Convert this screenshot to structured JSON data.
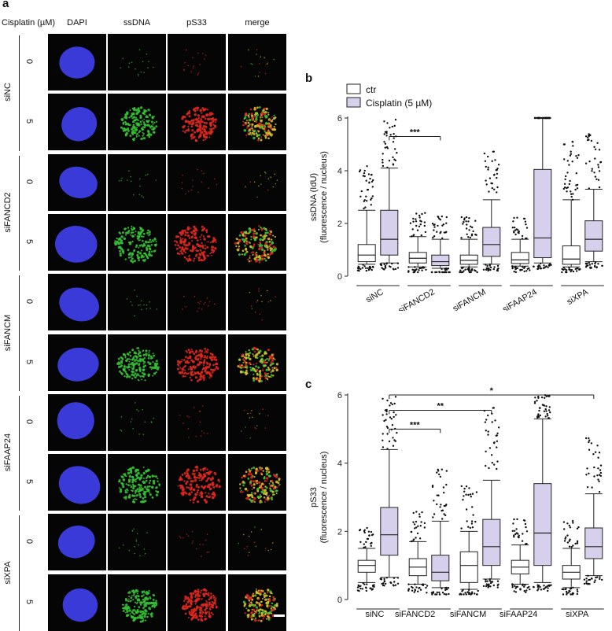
{
  "panel_labels": {
    "a": "a",
    "b": "b",
    "c": "c"
  },
  "treatment_header": "Cisplatin (µM)",
  "channels": [
    "DAPI",
    "ssDNA",
    "pS33",
    "merge"
  ],
  "channel_colors": {
    "DAPI": "#3a3ad8",
    "ssDNA": "#35c235",
    "pS33": "#e02820",
    "merge": "#d8c030"
  },
  "row_groups": [
    "siNC",
    "siFANCD2",
    "siFANCM",
    "siFAAP24",
    "siXPA"
  ],
  "concentrations": [
    "0",
    "5"
  ],
  "chart_data": [
    {
      "type": "box",
      "panel": "b",
      "ylabel": "ssDNA (IdU)",
      "ylabel2": "(fluorescence / nucleus)",
      "ylim": [
        0,
        6
      ],
      "yticks": [
        0,
        2,
        4,
        6
      ],
      "categories": [
        "siNC",
        "siFANCD2",
        "siFANCM",
        "siFAAP24",
        "siXPA"
      ],
      "legend": [
        {
          "name": "ctr",
          "color": "#ffffff"
        },
        {
          "name": "Cisplatin (5 µM)",
          "color": "#d6d0ec"
        }
      ],
      "series": [
        {
          "name": "ctr",
          "boxes": [
            {
              "min": 0.45,
              "q1": 0.55,
              "median": 0.8,
              "q3": 1.2,
              "max": 2.5
            },
            {
              "min": 0.35,
              "q1": 0.5,
              "median": 0.68,
              "q3": 0.9,
              "max": 1.5
            },
            {
              "min": 0.35,
              "q1": 0.45,
              "median": 0.6,
              "q3": 0.8,
              "max": 1.4
            },
            {
              "min": 0.38,
              "q1": 0.48,
              "median": 0.62,
              "q3": 0.9,
              "max": 1.4
            },
            {
              "min": 0.35,
              "q1": 0.45,
              "median": 0.65,
              "q3": 1.15,
              "max": 2.9
            }
          ]
        },
        {
          "name": "Cisplatin (5 µM)",
          "boxes": [
            {
              "min": 0.5,
              "q1": 0.8,
              "median": 1.4,
              "q3": 2.5,
              "max": 4.1
            },
            {
              "min": 0.3,
              "q1": 0.4,
              "median": 0.55,
              "q3": 0.8,
              "max": 1.4
            },
            {
              "min": 0.45,
              "q1": 0.75,
              "median": 1.2,
              "q3": 1.85,
              "max": 2.9
            },
            {
              "min": 0.5,
              "q1": 0.7,
              "median": 1.45,
              "q3": 4.05,
              "max": 6.0
            },
            {
              "min": 0.55,
              "q1": 0.95,
              "median": 1.4,
              "q3": 2.1,
              "max": 3.3
            }
          ]
        }
      ],
      "significance": [
        {
          "from": "siNC:Cisplatin (5 µM)",
          "to": "siFANCD2:Cisplatin (5 µM)",
          "label": "***",
          "y": 5.3
        }
      ]
    },
    {
      "type": "box",
      "panel": "c",
      "ylabel": "pS33",
      "ylabel2": "(fluorescence / nucleus)",
      "ylim": [
        0,
        6
      ],
      "yticks": [
        0,
        2,
        4,
        6
      ],
      "categories": [
        "siNC",
        "siFANCD2",
        "siFANCM",
        "siFAAP24",
        "siXPA"
      ],
      "series": [
        {
          "name": "ctr",
          "boxes": [
            {
              "min": 0.5,
              "q1": 0.8,
              "median": 1.0,
              "q3": 1.15,
              "max": 1.5
            },
            {
              "min": 0.45,
              "q1": 0.7,
              "median": 0.95,
              "q3": 1.2,
              "max": 1.7
            },
            {
              "min": 0.3,
              "q1": 0.5,
              "median": 1.0,
              "q3": 1.4,
              "max": 2.0
            },
            {
              "min": 0.45,
              "q1": 0.75,
              "median": 0.95,
              "q3": 1.15,
              "max": 1.6
            },
            {
              "min": 0.35,
              "q1": 0.6,
              "median": 0.8,
              "q3": 1.0,
              "max": 1.5
            }
          ]
        },
        {
          "name": "Cisplatin (5 µM)",
          "boxes": [
            {
              "min": 0.65,
              "q1": 1.3,
              "median": 1.9,
              "q3": 2.7,
              "max": 4.4
            },
            {
              "min": 0.35,
              "q1": 0.55,
              "median": 0.8,
              "q3": 1.3,
              "max": 2.3
            },
            {
              "min": 0.6,
              "q1": 1.0,
              "median": 1.55,
              "q3": 2.35,
              "max": 3.5
            },
            {
              "min": 0.5,
              "q1": 1.0,
              "median": 1.95,
              "q3": 3.4,
              "max": 5.3
            },
            {
              "min": 0.7,
              "q1": 1.2,
              "median": 1.55,
              "q3": 2.1,
              "max": 3.1
            }
          ]
        }
      ],
      "significance": [
        {
          "from": "siNC:Cisplatin (5 µM)",
          "to": "siFANCD2:Cisplatin (5 µM)",
          "label": "***",
          "y": 5.0
        },
        {
          "from": "siNC:Cisplatin (5 µM)",
          "to": "siFANCM:Cisplatin (5 µM)",
          "label": "**",
          "y": 5.55
        },
        {
          "from": "siNC:Cisplatin (5 µM)",
          "to": "siXPA:Cisplatin (5 µM)",
          "label": "*",
          "y": 6.0
        }
      ]
    }
  ]
}
